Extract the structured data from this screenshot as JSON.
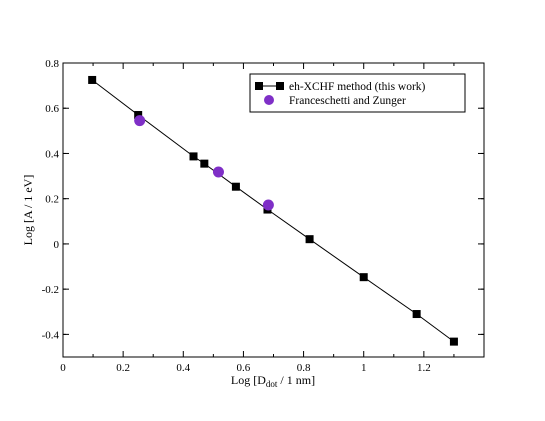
{
  "chart_data": {
    "type": "scatter",
    "xlabel": {
      "base": "Log [D",
      "sub": "dot",
      "rest": " / 1 nm]"
    },
    "ylabel": "Log [A / 1 eV]",
    "xlim": [
      0,
      1.4
    ],
    "ylim": [
      -0.5,
      0.8
    ],
    "xticks": [
      {
        "v": 0,
        "label": "0"
      },
      {
        "v": 0.2,
        "label": "0.2"
      },
      {
        "v": 0.4,
        "label": "0.4"
      },
      {
        "v": 0.6,
        "label": "0.6"
      },
      {
        "v": 0.8,
        "label": "0.8"
      },
      {
        "v": 1.0,
        "label": "1"
      },
      {
        "v": 1.2,
        "label": "1.2"
      }
    ],
    "yticks": [
      {
        "v": -0.4,
        "label": "-0.4"
      },
      {
        "v": -0.2,
        "label": "-0.2"
      },
      {
        "v": 0,
        "label": "0"
      },
      {
        "v": 0.2,
        "label": "0.2"
      },
      {
        "v": 0.4,
        "label": "0.4"
      },
      {
        "v": 0.6,
        "label": "0.6"
      },
      {
        "v": 0.8,
        "label": "0.8"
      }
    ],
    "grid": false,
    "legend": "top-right",
    "series": [
      {
        "name": "eh-XCHF method (this work)",
        "color": "#000000",
        "marker": "square",
        "line": true,
        "x": [
          0.097,
          0.25,
          0.434,
          0.47,
          0.575,
          0.68,
          0.82,
          1.0,
          1.176,
          1.3
        ],
        "y": [
          0.725,
          0.57,
          0.387,
          0.355,
          0.253,
          0.152,
          0.021,
          -0.147,
          -0.31,
          -0.432
        ]
      },
      {
        "name": "Franceschetti and Zunger",
        "color": "#7f2fc7",
        "marker": "circle",
        "line": false,
        "x": [
          0.255,
          0.517,
          0.683
        ],
        "y": [
          0.545,
          0.318,
          0.172
        ]
      }
    ]
  }
}
